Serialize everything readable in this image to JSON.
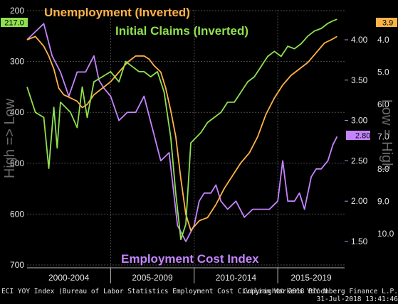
{
  "chart_data": {
    "type": "line",
    "title_unemployment": "Unemployment (Inverted)",
    "title_claims": "Initial Claims (Inverted)",
    "title_eci": "Employment Cost Index",
    "left_axis_label": "High => Low",
    "right_axis_label": "Low = High",
    "left_axis": {
      "ticks": [
        "200",
        "300",
        "400",
        "500",
        "600",
        "700"
      ],
      "range": [
        200,
        700
      ],
      "inverted": true
    },
    "eci_axis": {
      "ticks": [
        "1.50",
        "2.00",
        "2.50",
        "3.00",
        "3.50",
        "4.00"
      ],
      "range": [
        1.3,
        4.3
      ]
    },
    "unemp_axis": {
      "ticks": [
        "4.0",
        "5.0",
        "6.0",
        "7.0",
        "8.0",
        "9.0",
        "10.0"
      ],
      "range": [
        3.0,
        10.5
      ],
      "inverted": true
    },
    "x_categories": [
      "2000-2004",
      "2005-2009",
      "2010-2014",
      "2015-2019"
    ],
    "x_range": [
      2000,
      2019
    ],
    "grid": true,
    "colors": {
      "unemployment": "#ffb347",
      "claims": "#8fe04f",
      "eci": "#c584ff",
      "grid": "#4a4a4a"
    },
    "badges": {
      "claims_last": "217.0",
      "unemp_last": "3.9",
      "eci_last": "2.80"
    },
    "series": [
      {
        "name": "Initial Claims (Inverted)",
        "axis": "left",
        "x": [
          2000.0,
          2000.5,
          2001.0,
          2001.3,
          2001.6,
          2001.8,
          2002.0,
          2002.3,
          2002.6,
          2003.0,
          2003.3,
          2003.6,
          2004.0,
          2004.5,
          2005.0,
          2005.5,
          2005.9,
          2006.3,
          2006.7,
          2007.0,
          2007.4,
          2007.8,
          2008.2,
          2008.6,
          2008.9,
          2009.2,
          2009.5,
          2009.8,
          2010.1,
          2010.4,
          2010.8,
          2011.2,
          2011.6,
          2012.0,
          2012.4,
          2012.8,
          2013.2,
          2013.6,
          2014.0,
          2014.4,
          2014.8,
          2015.2,
          2015.6,
          2016.0,
          2016.4,
          2016.8,
          2017.2,
          2017.6,
          2018.0,
          2018.3,
          2018.55
        ],
        "values": [
          350,
          400,
          410,
          510,
          390,
          470,
          380,
          390,
          400,
          430,
          350,
          410,
          340,
          330,
          320,
          340,
          300,
          310,
          320,
          320,
          330,
          320,
          360,
          450,
          560,
          650,
          620,
          460,
          450,
          440,
          420,
          410,
          400,
          380,
          380,
          360,
          340,
          330,
          310,
          290,
          280,
          290,
          270,
          275,
          265,
          250,
          240,
          235,
          225,
          220,
          217
        ]
      },
      {
        "name": "Unemployment (Inverted)",
        "axis": "unemp",
        "x": [
          2000.0,
          2000.5,
          2001.0,
          2001.3,
          2001.6,
          2001.9,
          2002.2,
          2002.6,
          2003.0,
          2003.3,
          2003.6,
          2004.0,
          2004.5,
          2005.0,
          2005.5,
          2006.0,
          2006.5,
          2007.0,
          2007.3,
          2007.6,
          2008.0,
          2008.3,
          2008.6,
          2008.9,
          2009.2,
          2009.5,
          2009.8,
          2010.3,
          2010.8,
          2011.3,
          2011.8,
          2012.3,
          2012.8,
          2013.3,
          2013.8,
          2014.3,
          2014.8,
          2015.3,
          2015.8,
          2016.3,
          2016.8,
          2017.3,
          2017.8,
          2018.2,
          2018.55
        ],
        "values": [
          4.0,
          3.9,
          4.2,
          4.5,
          4.9,
          5.5,
          5.7,
          5.8,
          5.9,
          6.1,
          6.0,
          5.7,
          5.5,
          5.3,
          5.0,
          4.7,
          4.5,
          4.5,
          4.6,
          4.8,
          5.0,
          5.5,
          6.2,
          7.0,
          8.3,
          9.4,
          9.9,
          9.6,
          9.5,
          9.1,
          8.6,
          8.2,
          7.8,
          7.5,
          7.0,
          6.3,
          5.8,
          5.4,
          5.1,
          4.9,
          4.7,
          4.4,
          4.1,
          4.0,
          3.9
        ]
      },
      {
        "name": "Employment Cost Index",
        "axis": "eci",
        "x": [
          2000.0,
          2000.5,
          2001.0,
          2001.5,
          2002.0,
          2002.5,
          2003.0,
          2003.5,
          2004.0,
          2004.3,
          2004.6,
          2005.0,
          2005.5,
          2006.0,
          2006.5,
          2007.0,
          2007.5,
          2008.0,
          2008.5,
          2009.0,
          2009.5,
          2010.0,
          2010.3,
          2010.6,
          2011.0,
          2011.3,
          2011.6,
          2012.0,
          2012.5,
          2013.0,
          2013.5,
          2014.0,
          2014.5,
          2015.0,
          2015.3,
          2015.6,
          2016.0,
          2016.3,
          2016.6,
          2017.0,
          2017.3,
          2017.6,
          2018.0,
          2018.3,
          2018.55
        ],
        "values": [
          4.0,
          4.1,
          4.2,
          3.8,
          3.6,
          3.3,
          3.6,
          3.6,
          3.8,
          3.5,
          3.4,
          3.3,
          3.0,
          3.1,
          3.1,
          3.3,
          2.9,
          2.5,
          2.6,
          1.7,
          1.5,
          1.7,
          2.0,
          2.1,
          2.1,
          2.2,
          2.0,
          1.9,
          2.0,
          1.8,
          1.9,
          1.9,
          1.9,
          2.0,
          2.5,
          2.0,
          2.0,
          2.1,
          1.9,
          2.3,
          2.4,
          2.4,
          2.5,
          2.7,
          2.8
        ]
      }
    ]
  },
  "footer": {
    "source": "ECI YOY Index (Bureau of Labor Statistics Employment Cost Civilian Workers YoY N",
    "copyright": "Copyright© 2018 Bloomberg Finance L.P.",
    "timestamp": "31-Jul-2018 13:41:46"
  }
}
